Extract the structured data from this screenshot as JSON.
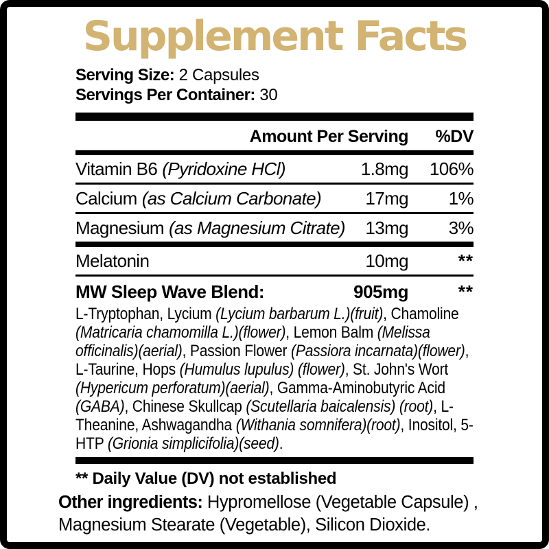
{
  "colors": {
    "title_gold": "#d2b372",
    "text": "#000000",
    "background": "#ffffff",
    "frame": "#000000"
  },
  "title": "Supplement Facts",
  "serving": {
    "size_label": "Serving Size:",
    "size_value": " 2 Capsules",
    "container_label": "Servings Per Container:",
    "container_value": " 30"
  },
  "table": {
    "header": {
      "amount": "Amount Per Serving",
      "dv": "%DV"
    },
    "rows": [
      {
        "name": "Vitamin B6",
        "note": "(Pyridoxine HCl)",
        "amount": "1.8mg",
        "dv": "106%"
      },
      {
        "name": "Calcium",
        "note": "(as Calcium Carbonate)",
        "amount": "17mg",
        "dv": "1%"
      },
      {
        "name": "Magnesium",
        "note": "(as Magnesium Citrate)",
        "amount": "13mg",
        "dv": "3%"
      },
      {
        "name": "Melatonin",
        "note": "",
        "amount": "10mg",
        "dv": "**"
      }
    ],
    "blend": {
      "name": "MW Sleep Wave Blend:",
      "amount": "905mg",
      "dv": "**",
      "ingredients_runs": [
        {
          "t": "L-Tryptophan, Lycium ",
          "i": false
        },
        {
          "t": "(Lycium barbarum L.)(fruit)",
          "i": true
        },
        {
          "t": ", Chamoline ",
          "i": false
        },
        {
          "t": "(Matricaria chamomilla L.)(flower)",
          "i": true
        },
        {
          "t": ", Lemon Balm ",
          "i": false
        },
        {
          "t": "(Melissa officinalis)(aerial)",
          "i": true
        },
        {
          "t": ", Passion Flower ",
          "i": false
        },
        {
          "t": "(Passiora incarnata)(flower)",
          "i": true
        },
        {
          "t": ", L-Taurine, Hops ",
          "i": false
        },
        {
          "t": "(Humulus lupulus) (flower)",
          "i": true
        },
        {
          "t": ", St. John's Wort ",
          "i": false
        },
        {
          "t": "(Hypericum perforatum)(aerial)",
          "i": true
        },
        {
          "t": ", Gamma-Aminobutyric Acid ",
          "i": false
        },
        {
          "t": "(GABA)",
          "i": true
        },
        {
          "t": ", Chinese Skullcap ",
          "i": false
        },
        {
          "t": "(Scutellaria baicalensis) (root)",
          "i": true
        },
        {
          "t": ", L-Theanine, Ashwagandha ",
          "i": false
        },
        {
          "t": "(Withania somnifera)(root)",
          "i": true
        },
        {
          "t": ", Inositol, 5-HTP ",
          "i": false
        },
        {
          "t": "(Grionia simplicifolia)(seed)",
          "i": true
        },
        {
          "t": ".",
          "i": false
        }
      ]
    }
  },
  "footnote": "** Daily Value (DV) not established",
  "other_ingredients": {
    "label": "Other ingredients:",
    "value": " Hypromellose (Vegetable Capsule) , Magnesium Stearate (Vegetable), Silicon Dioxide."
  }
}
